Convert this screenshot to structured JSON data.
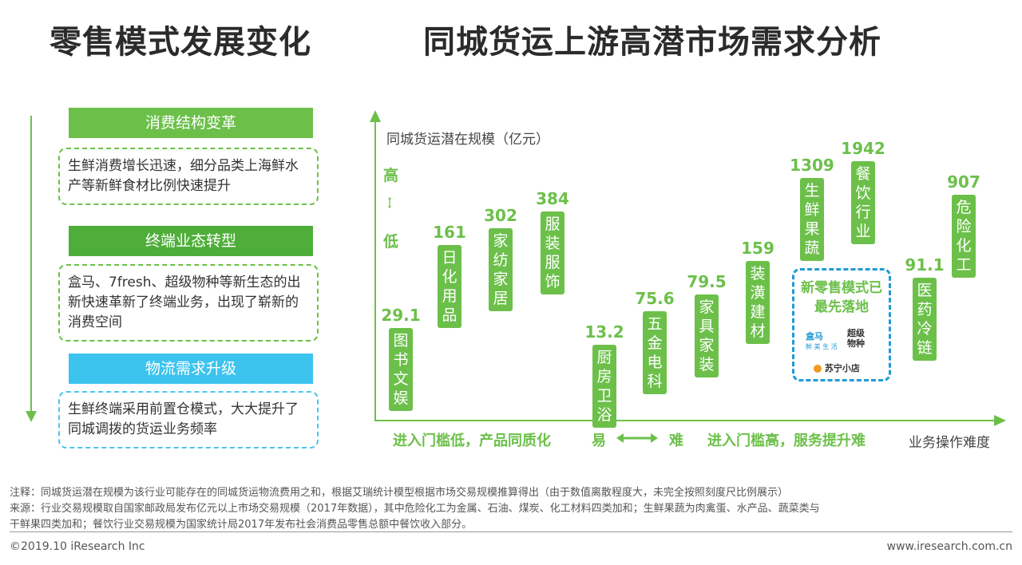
{
  "titles": {
    "left": "零售模式发展变化",
    "right": "同城货运上游高潜市场需求分析"
  },
  "left_panel": [
    {
      "header": "消费结构变革",
      "color": "#6cc04a",
      "text": "生鲜消费增长迅速，细分品类上海鲜水产等新鲜食材比例快速提升"
    },
    {
      "header": "终端业态转型",
      "color": "#4eae39",
      "text": "盒马、7fresh、超级物种等新生态的出新快速革新了终端业务，出现了崭新的消费空间"
    },
    {
      "header": "物流需求升级",
      "color": "#3cc3ee",
      "text": "生鲜终端采用前置仓模式，大大提升了同城调拨的货运业务频率"
    }
  ],
  "chart_data": {
    "type": "bar",
    "ylabel": "同城货运潜在规模（亿元）",
    "y_high": "高",
    "y_low": "低",
    "xlabel": "业务操作难度",
    "x_left": "进入门槛低，产品同质化",
    "x_mid_left": "易",
    "x_mid_right": "难",
    "x_right": "进入门槛高，服务提升难",
    "categories": [
      "图书文娱",
      "日化用品",
      "家纺家居",
      "服装服饰",
      "厨房卫浴",
      "五金电科",
      "家具家装",
      "装潢建材",
      "生鲜果蔬",
      "餐饮行业",
      "医药冷链",
      "危险化工"
    ],
    "values": [
      29.1,
      161,
      302,
      384,
      13.2,
      75.6,
      79.5,
      159,
      1309,
      1942,
      91.1,
      907
    ],
    "value_labels": [
      "29.1",
      "161",
      "302",
      "384",
      "13.2",
      "75.6",
      "79.5",
      "159",
      "1309",
      "1942",
      "91.1",
      "907"
    ],
    "callout": {
      "text": "新零售模式已最先落地",
      "logos": [
        {
          "name": "hema-logo",
          "title": "盒马",
          "subtitle": "鲜 美 生 活",
          "color": "#1f9bd6"
        },
        {
          "name": "super-species-logo",
          "title": "超级物种",
          "color": "#333333"
        },
        {
          "name": "suning-logo",
          "title": "苏宁小店",
          "color": "#333333"
        }
      ]
    },
    "accent_color": "#6cc04a"
  },
  "notes": {
    "note": "注释：同城货运潜在规模为该行业可能存在的同城货运物流费用之和，根据艾瑞统计模型根据市场交易规模推算得出（由于数值离散程度大，未完全按照刻度尺比例展示）",
    "source1": "来源：行业交易规模取自国家邮政局发布亿元以上市场交易规模（2017年数据），其中危险化工为金属、石油、煤炭、化工材料四类加和；生鲜果蔬为肉禽蛋、水产品、蔬菜类与",
    "source2": "干鲜果四类加和；餐饮行业交易规模为国家统计局2017年发布社会消费品零售总额中餐饮收入部分。"
  },
  "footer": {
    "left": "©2019.10 iResearch Inc",
    "right": "www.iresearch.com.cn"
  }
}
